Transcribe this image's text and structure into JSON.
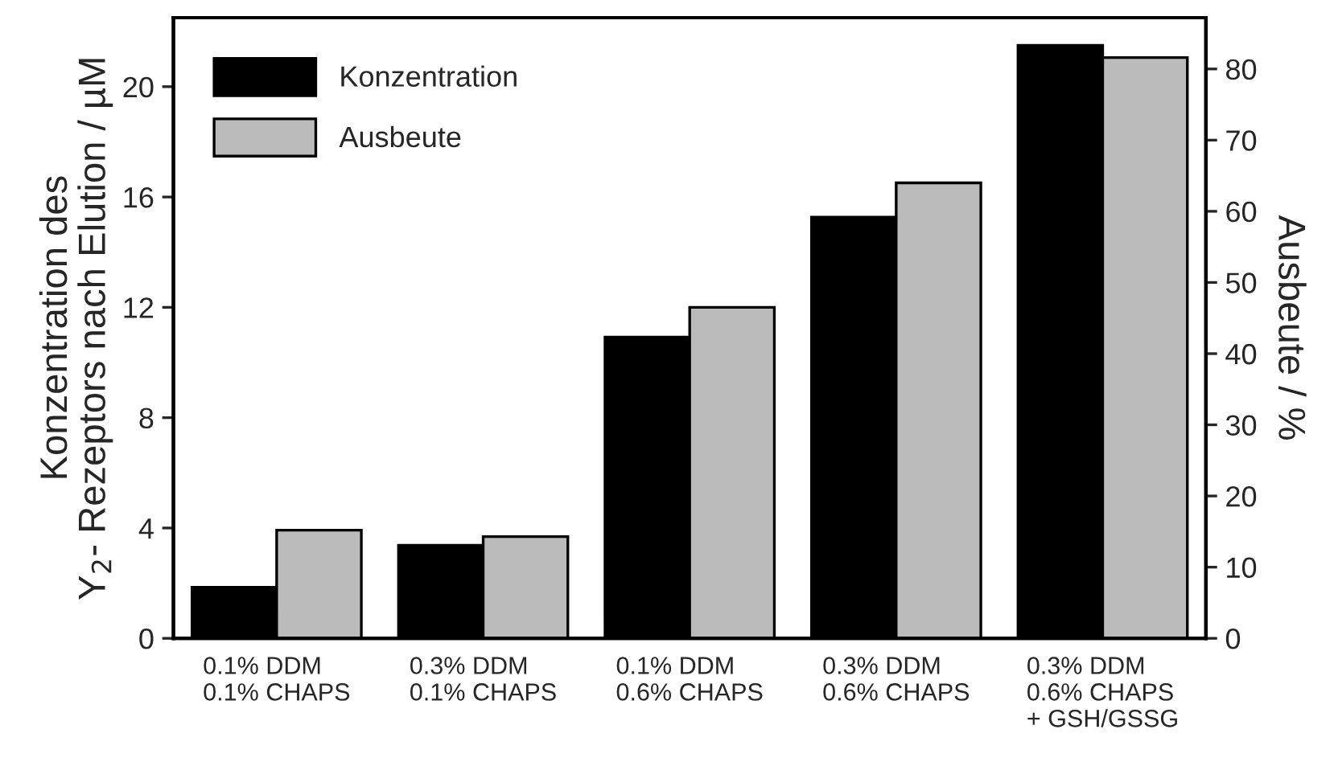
{
  "chart_data": {
    "type": "bar",
    "categories": [
      "0.1% DDM\n0.1% CHAPS",
      "0.3% DDM\n0.1% CHAPS",
      "0.1% DDM\n0.6% CHAPS",
      "0.3% DDM\n0.6% CHAPS",
      "0.3% DDM\n0.6% CHAPS\n+ GSH/GSSG"
    ],
    "series": [
      {
        "name": "Konzentration",
        "color": "#000000",
        "values": [
          1.85,
          3.37,
          10.92,
          15.27,
          21.5
        ]
      },
      {
        "name": "Ausbeute",
        "color": "#bbbbbb",
        "axis": "y2",
        "values": [
          15.2,
          14.3,
          46.5,
          64.0,
          81.6
        ]
      }
    ],
    "ylabel": "Konzentration des\nY$_{2}$- Rezeptors nach Elution / µM",
    "y2label": "Ausbeute / %",
    "ylim": [
      0,
      22.5
    ],
    "yticks": [
      0,
      4,
      8,
      12,
      16,
      20
    ],
    "y2lim": [
      0,
      87.2
    ],
    "y2ticks": [
      0,
      10,
      20,
      30,
      40,
      50,
      60,
      70,
      80
    ],
    "legend": "top left",
    "grid": false
  }
}
